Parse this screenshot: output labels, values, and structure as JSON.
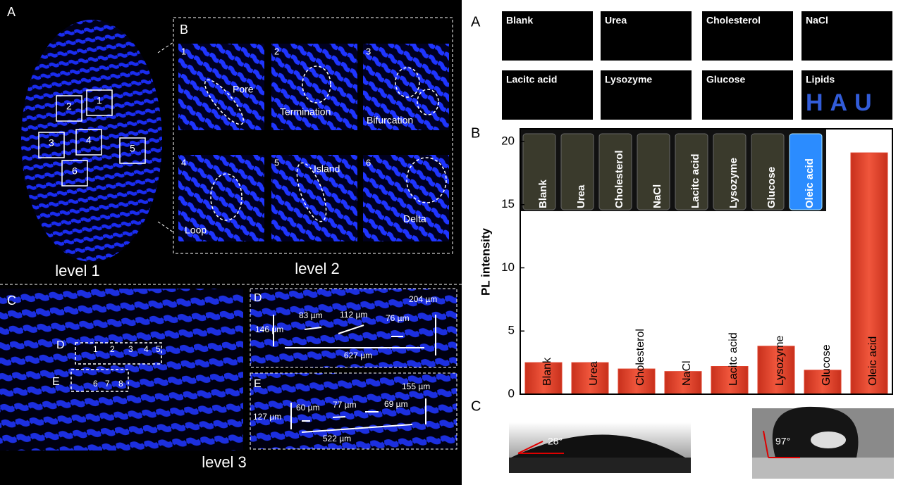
{
  "left": {
    "panel_a": "A",
    "panel_b": "B",
    "panel_c": "C",
    "panel_d": "D",
    "panel_e": "E",
    "level1": "level 1",
    "level2": "level 2",
    "level3": "level 3",
    "regions": [
      "1",
      "2",
      "3",
      "4",
      "5",
      "6"
    ],
    "minutiae": [
      {
        "number": "1",
        "label": "Pore"
      },
      {
        "number": "2",
        "label": "Termination"
      },
      {
        "number": "3",
        "label": "Bifurcation"
      },
      {
        "number": "4",
        "label": "Loop"
      },
      {
        "number": "5",
        "label": "Island"
      },
      {
        "number": "6",
        "label": "Delta"
      }
    ],
    "d_positions": [
      "1",
      "2",
      "3",
      "4",
      "5"
    ],
    "e_positions": [
      "6",
      "7",
      "8"
    ],
    "d_measurements": [
      "204 µm",
      "146 µm",
      "83 µm",
      "112 µm",
      "76 µm",
      "627 µm"
    ],
    "e_measurements": [
      "155 µm",
      "127 µm",
      "60 µm",
      "77 µm",
      "69 µm",
      "522 µm"
    ]
  },
  "right": {
    "panel_a": "A",
    "panel_b": "B",
    "panel_c": "C",
    "samples": [
      "Blank",
      "Urea",
      "Cholesterol",
      "NaCl",
      "Lacitc acid",
      "Lysozyme",
      "Glucose",
      "Lipids"
    ],
    "hau": "HAU",
    "angles": [
      "28°",
      "97°"
    ]
  },
  "chart_data": {
    "type": "bar",
    "ylabel": "PL intensity",
    "categories": [
      "Blank",
      "Urea",
      "Cholesterol",
      "NaCl",
      "Lacitc acid",
      "Lysozyme",
      "Glucose",
      "Oleic acid"
    ],
    "values": [
      2.5,
      2.5,
      2.0,
      1.8,
      2.2,
      3.8,
      1.9,
      19.1
    ],
    "color": "#e0412b",
    "ylim": [
      0,
      21
    ],
    "yticks": [
      0,
      5,
      10,
      15,
      20
    ]
  }
}
